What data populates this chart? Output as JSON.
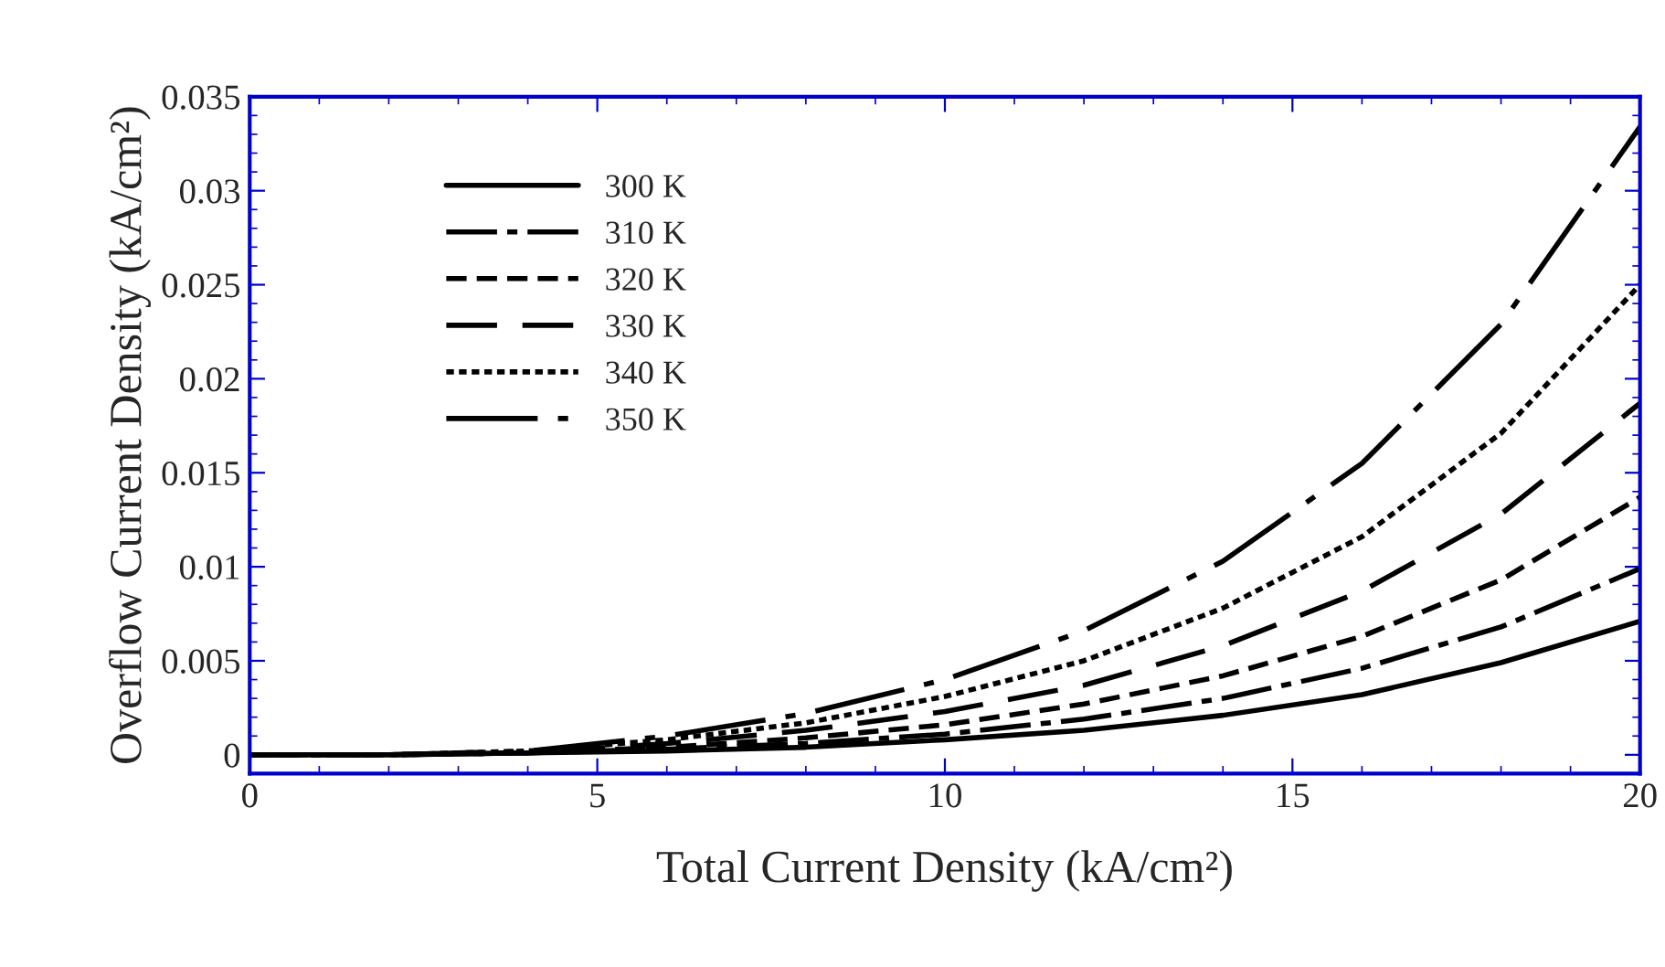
{
  "chart_data": {
    "type": "line",
    "xlabel": "Total Current Density (kA/cm²)",
    "ylabel": "Overflow Current Density (kA/cm²)",
    "xlim": [
      0,
      20
    ],
    "xticks": [
      0,
      5,
      10,
      15,
      20
    ],
    "ylim": [
      -0.001,
      0.035
    ],
    "yticks": [
      0,
      0.005,
      0.01,
      0.015,
      0.02,
      0.025,
      0.03,
      0.035
    ],
    "grid": false,
    "legend": "top left",
    "x": [
      0,
      2,
      4,
      6,
      8,
      10,
      12,
      14,
      16,
      18,
      20
    ],
    "series": [
      {
        "name": "300 K",
        "color": "#000000",
        "line_style": "solid",
        "values": [
          0,
          0,
          0.0001,
          0.0002,
          0.0004,
          0.0008,
          0.0013,
          0.0021,
          0.0032,
          0.0049,
          0.0071
        ]
      },
      {
        "name": "310 K",
        "color": "#000000",
        "line_style": "dashdot",
        "values": [
          0,
          0,
          0.0001,
          0.0003,
          0.0006,
          0.0011,
          0.0019,
          0.003,
          0.0046,
          0.0068,
          0.0099
        ]
      },
      {
        "name": "320 K",
        "color": "#000000",
        "line_style": "dashed",
        "values": [
          0,
          0,
          0.0001,
          0.0004,
          0.0009,
          0.0016,
          0.0027,
          0.0042,
          0.0063,
          0.0093,
          0.0137
        ]
      },
      {
        "name": "330 K",
        "color": "#000000",
        "line_style": "longdash",
        "values": [
          0,
          0,
          0.0001,
          0.0006,
          0.0013,
          0.0023,
          0.0037,
          0.0058,
          0.0087,
          0.0128,
          0.0187
        ]
      },
      {
        "name": "340 K",
        "color": "#000000",
        "line_style": "dotted",
        "values": [
          0,
          0,
          0.0002,
          0.0008,
          0.0017,
          0.0031,
          0.005,
          0.0078,
          0.0116,
          0.0171,
          0.025
        ]
      },
      {
        "name": "350 K",
        "color": "#000000",
        "line_style": "longdashdot",
        "values": [
          0,
          0,
          0.0002,
          0.001,
          0.0022,
          0.004,
          0.0066,
          0.0103,
          0.0155,
          0.0229,
          0.0334
        ]
      }
    ]
  }
}
